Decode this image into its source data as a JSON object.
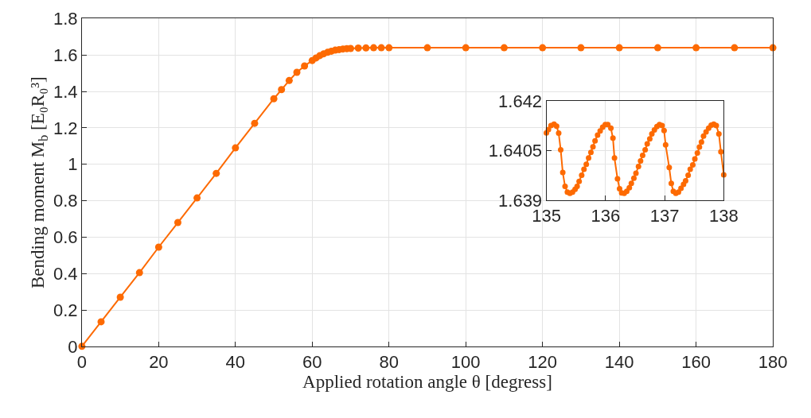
{
  "chart_data": [
    {
      "type": "line",
      "xlabel": "Applied rotation angle θ [degress]",
      "ylabel": "Bending moment M$_{b}$ [E₀R₀³]",
      "marker": "circle",
      "grid": true,
      "xlim": [
        0,
        180
      ],
      "ylim": [
        0,
        1.8
      ],
      "xticks": [
        0,
        20,
        40,
        60,
        80,
        100,
        120,
        140,
        160,
        180
      ],
      "yticks": [
        0,
        0.2,
        0.4,
        0.6,
        0.8,
        1,
        1.2,
        1.4,
        1.6,
        1.8
      ],
      "series": [
        {
          "color": "#fd6a02",
          "x": [
            0,
            5,
            10,
            15,
            20,
            25,
            30,
            35,
            40,
            45,
            50,
            52,
            54,
            56,
            58,
            60,
            61,
            62,
            63,
            64,
            65,
            66,
            67,
            68,
            69,
            70,
            72,
            74,
            76,
            78,
            80,
            90,
            100,
            110,
            120,
            130,
            140,
            150,
            160,
            170,
            180
          ],
          "values": [
            0,
            0.135,
            0.27,
            0.405,
            0.545,
            0.68,
            0.815,
            0.95,
            1.09,
            1.225,
            1.36,
            1.41,
            1.46,
            1.505,
            1.54,
            1.57,
            1.584,
            1.597,
            1.607,
            1.615,
            1.621,
            1.627,
            1.63,
            1.633,
            1.635,
            1.636,
            1.638,
            1.639,
            1.64,
            1.64,
            1.64,
            1.64,
            1.64,
            1.64,
            1.64,
            1.64,
            1.64,
            1.64,
            1.64,
            1.64,
            1.64
          ]
        }
      ]
    },
    {
      "type": "line",
      "marker": "circle",
      "grid": true,
      "xlim": [
        135,
        138
      ],
      "ylim": [
        1.639,
        1.642
      ],
      "xticks": [
        135,
        136,
        137,
        138
      ],
      "yticks": [
        1.639,
        1.6405,
        1.642
      ],
      "series": [
        {
          "color": "#fd6a02",
          "x": [
            135.0,
            135.035,
            135.078,
            135.13,
            135.173,
            135.208,
            135.242,
            135.277,
            135.316,
            135.355,
            135.398,
            135.442,
            135.485,
            135.52,
            135.554,
            135.597,
            135.636,
            135.675,
            135.714,
            135.753,
            135.788,
            135.823,
            135.866,
            135.91,
            135.952,
            135.996,
            136.039,
            136.091,
            136.126,
            136.152,
            136.203,
            136.238,
            136.273,
            136.316,
            136.359,
            136.403,
            136.437,
            136.48,
            136.515,
            136.558,
            136.593,
            136.628,
            136.671,
            136.706,
            136.749,
            136.784,
            136.827,
            136.87,
            136.913,
            136.957,
            136.991,
            137.017,
            137.078,
            137.113,
            137.147,
            137.19,
            137.234,
            137.277,
            137.32,
            137.355,
            137.398,
            137.433,
            137.476,
            137.511,
            137.554,
            137.589,
            137.623,
            137.658,
            137.701,
            137.745,
            137.788,
            137.831,
            137.874,
            137.918,
            137.952,
            138.0
          ],
          "values": [
            1.64104,
            1.64114,
            1.64126,
            1.6413,
            1.64124,
            1.64103,
            1.64053,
            1.63984,
            1.63942,
            1.63925,
            1.63921,
            1.63925,
            1.63933,
            1.63942,
            1.63957,
            1.63976,
            1.63994,
            1.64009,
            1.64028,
            1.64045,
            1.64062,
            1.6408,
            1.64097,
            1.6411,
            1.64121,
            1.64129,
            1.64129,
            1.64118,
            1.64088,
            1.64028,
            1.63965,
            1.63935,
            1.63922,
            1.63921,
            1.63927,
            1.63938,
            1.63951,
            1.63967,
            1.63982,
            1.64002,
            1.64019,
            1.64036,
            1.64053,
            1.64071,
            1.64086,
            1.64101,
            1.64113,
            1.64123,
            1.64129,
            1.64126,
            1.64111,
            1.64068,
            1.63999,
            1.63951,
            1.63927,
            1.63921,
            1.63925,
            1.63936,
            1.63948,
            1.63959,
            1.63976,
            1.63994,
            1.64007,
            1.64025,
            1.64043,
            1.64061,
            1.64076,
            1.64094,
            1.64107,
            1.64118,
            1.64127,
            1.6413,
            1.64126,
            1.64101,
            1.64047,
            1.63977
          ]
        }
      ]
    }
  ]
}
